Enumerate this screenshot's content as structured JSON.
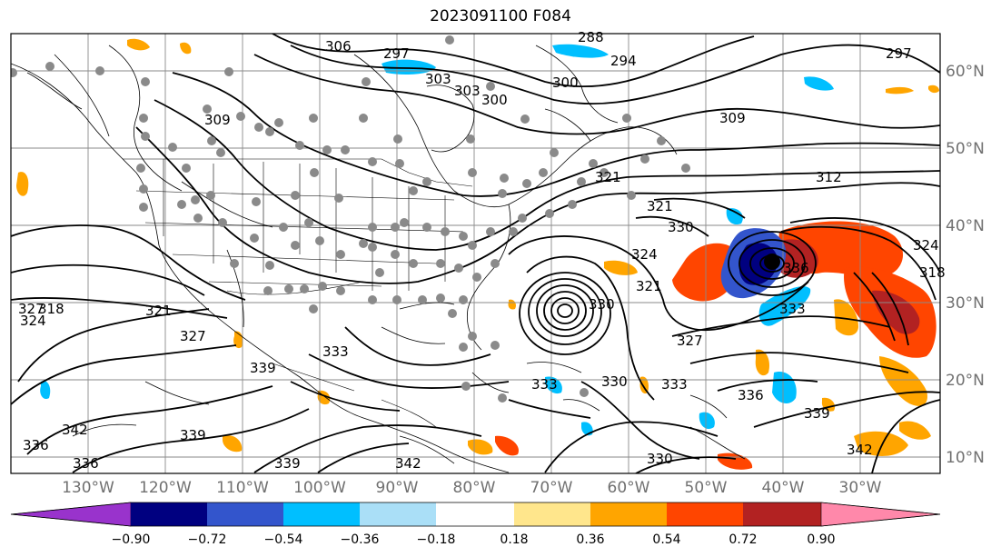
{
  "title": "2023091100 F084",
  "lat_labels": [
    "60°N",
    "50°N",
    "40°N",
    "30°N",
    "20°N",
    "10°N"
  ],
  "lon_labels": [
    "130°W",
    "120°W",
    "110°W",
    "100°W",
    "90°W",
    "80°W",
    "70°W",
    "60°W",
    "50°W",
    "40°W",
    "30°W"
  ],
  "colorbar": {
    "colors": [
      "#9933cc",
      "#000080",
      "#3355cc",
      "#00bfff",
      "#aadff7",
      "#ffffff",
      "#ffe68c",
      "#ffa500",
      "#ff4500",
      "#b22222",
      "#ff88aa"
    ],
    "ticks": [
      "−0.90",
      "−0.72",
      "−0.54",
      "−0.36",
      "−0.18",
      "0.18",
      "0.36",
      "0.54",
      "0.72",
      "0.90"
    ]
  },
  "contour_labels": [
    "306",
    "297",
    "309",
    "303",
    "300",
    "294",
    "288",
    "297",
    "309",
    "312",
    "321",
    "327",
    "330",
    "324",
    "321",
    "318",
    "324",
    "321",
    "327",
    "339",
    "336",
    "342",
    "339",
    "339",
    "336",
    "333",
    "327",
    "330",
    "330",
    "333",
    "336",
    "339",
    "342",
    "333",
    "336",
    "324",
    "318",
    "330",
    "333",
    "342",
    "321",
    "303",
    "300"
  ]
}
